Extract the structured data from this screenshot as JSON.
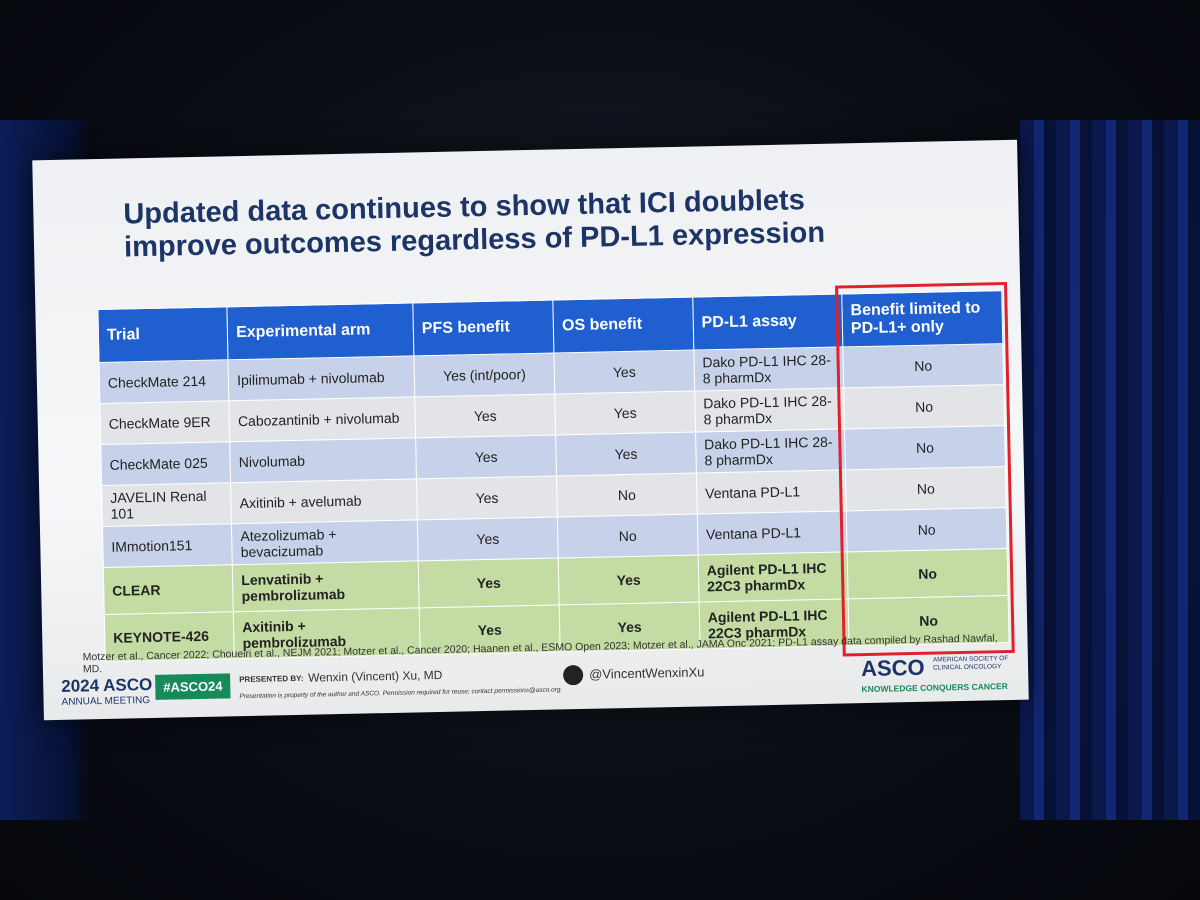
{
  "slide": {
    "title": "Updated data continues to show that ICI doublets improve outcomes regardless of PD-L1 expression",
    "table": {
      "header": [
        "Trial",
        "Experimental arm",
        "PFS benefit",
        "OS benefit",
        "PD-L1 assay",
        "Benefit limited to PD-L1+ only"
      ],
      "rows": [
        [
          "CheckMate 214",
          "Ipilimumab + nivolumab",
          "Yes (int/poor)",
          "Yes",
          "Dako PD-L1 IHC 28-8 pharmDx",
          "No"
        ],
        [
          "CheckMate 9ER",
          "Cabozantinib + nivolumab",
          "Yes",
          "Yes",
          "Dako PD-L1 IHC 28-8 pharmDx",
          "No"
        ],
        [
          "CheckMate 025",
          "Nivolumab",
          "Yes",
          "Yes",
          "Dako PD-L1 IHC 28-8 pharmDx",
          "No"
        ],
        [
          "JAVELIN Renal 101",
          "Axitinib + avelumab",
          "Yes",
          "No",
          "Ventana PD-L1",
          "No"
        ],
        [
          "IMmotion151",
          "Atezolizumab + bevacizumab",
          "Yes",
          "No",
          "Ventana PD-L1",
          "No"
        ],
        [
          "CLEAR",
          "Lenvatinib + pembrolizumab",
          "Yes",
          "Yes",
          "Agilent PD-L1 IHC 22C3 pharmDx",
          "No"
        ],
        [
          "KEYNOTE-426",
          "Axitinib + pembrolizumab",
          "Yes",
          "Yes",
          "Agilent PD-L1 IHC 22C3 pharmDx",
          "No"
        ]
      ]
    },
    "citation": "Motzer et al., Cancer 2022; Choueiri et al., NEJM 2021; Motzer et al., Cancer 2020; Haanen et al., ESMO Open 2023; Motzer et al., JAMA Onc 2021; PD-L1 assay data compiled by Rashad Nawfal, MD.",
    "footer": {
      "meeting_year": "2024 ASCO",
      "meeting_name": "ANNUAL MEETING",
      "hashtag": "#ASCO24",
      "presented_by_label": "PRESENTED BY:",
      "presenter": "Wenxin (Vincent) Xu, MD",
      "disclaimer": "Presentation is property of the author and ASCO. Permission required for reuse; contact permissions@asco.org.",
      "handle": "@VincentWenxinXu",
      "logo": "ASCO",
      "society": "AMERICAN SOCIETY OF CLINICAL ONCOLOGY",
      "tagline": "KNOWLEDGE CONQUERS CANCER"
    }
  }
}
